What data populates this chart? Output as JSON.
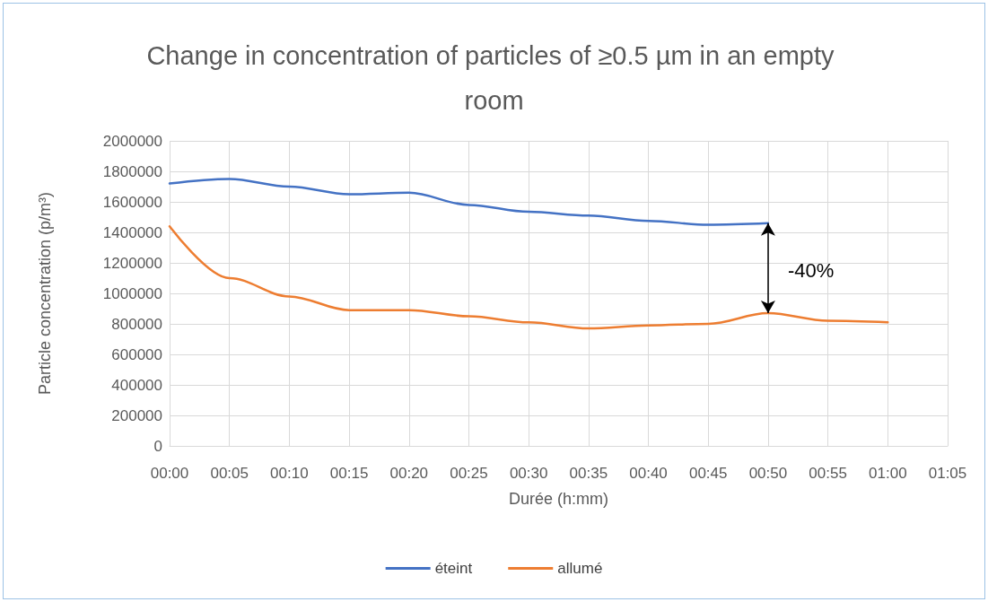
{
  "chart_data": {
    "type": "line",
    "title": "Change in concentration of particles of ≥0.5 µm in an empty room",
    "xlabel": "Durée (h:mm)",
    "ylabel": "Particle concentration (p/m³)",
    "series": [
      {
        "name": "éteint",
        "color": "#4472c4",
        "x": [
          0,
          5,
          10,
          15,
          20,
          25,
          30,
          35,
          40,
          45,
          50
        ],
        "values": [
          1720000,
          1750000,
          1700000,
          1650000,
          1660000,
          1580000,
          1535000,
          1510000,
          1475000,
          1450000,
          1460000
        ]
      },
      {
        "name": "allumé",
        "color": "#ed7d31",
        "x": [
          0,
          5,
          10,
          15,
          20,
          25,
          30,
          35,
          40,
          45,
          50,
          55,
          60
        ],
        "values": [
          1440000,
          1100000,
          980000,
          890000,
          890000,
          850000,
          810000,
          770000,
          790000,
          800000,
          870000,
          820000,
          810000
        ]
      }
    ],
    "annotations": [
      "-40%"
    ],
    "xlim": [
      0,
      65
    ],
    "xticks": [
      {
        "value": 0,
        "label": "00:00"
      },
      {
        "value": 5,
        "label": "00:05"
      },
      {
        "value": 10,
        "label": "00:10"
      },
      {
        "value": 15,
        "label": "00:15"
      },
      {
        "value": 20,
        "label": "00:20"
      },
      {
        "value": 25,
        "label": "00:25"
      },
      {
        "value": 30,
        "label": "00:30"
      },
      {
        "value": 35,
        "label": "00:35"
      },
      {
        "value": 40,
        "label": "00:40"
      },
      {
        "value": 45,
        "label": "00:45"
      },
      {
        "value": 50,
        "label": "00:50"
      },
      {
        "value": 55,
        "label": "00:55"
      },
      {
        "value": 60,
        "label": "01:00"
      },
      {
        "value": 65,
        "label": "01:05"
      }
    ],
    "ylim": [
      0,
      2000000
    ],
    "yticks": [
      0,
      200000,
      400000,
      600000,
      800000,
      1000000,
      1200000,
      1400000,
      1600000,
      1800000,
      2000000
    ],
    "grid": true,
    "legend": "bottom",
    "marker": "none",
    "line_style": "solid"
  }
}
